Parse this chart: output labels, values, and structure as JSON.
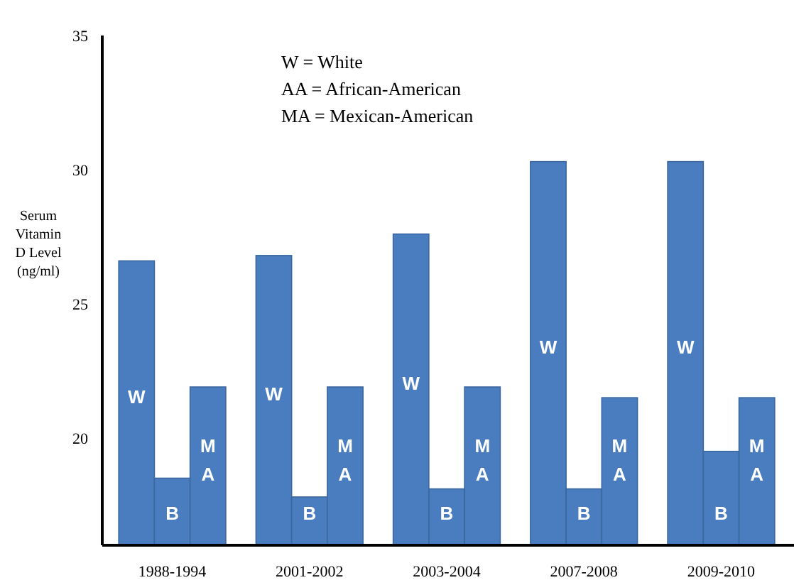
{
  "chart_data": {
    "type": "bar",
    "ylabel": "Serum Vitamin D Level (ng/ml)",
    "categories": [
      "1988-1994",
      "2001-2002",
      "2003-2004",
      "2007-2008",
      "2009-2010"
    ],
    "series": [
      {
        "name": "W",
        "color": "#4a7dc0",
        "values": [
          26.6,
          26.8,
          27.6,
          30.3,
          30.3
        ]
      },
      {
        "name": "B",
        "color": "#4a7dc0",
        "values": [
          18.5,
          17.8,
          18.1,
          18.1,
          19.5
        ]
      },
      {
        "name": "MA",
        "color": "#4a7dc0",
        "values": [
          21.9,
          21.9,
          21.9,
          21.5,
          21.5
        ]
      }
    ],
    "ylim": [
      16,
      35
    ],
    "yticks": [
      20,
      25,
      30,
      35
    ],
    "annotations": [
      "W = White",
      "AA = African-American",
      "MA = Mexican-American"
    ]
  }
}
